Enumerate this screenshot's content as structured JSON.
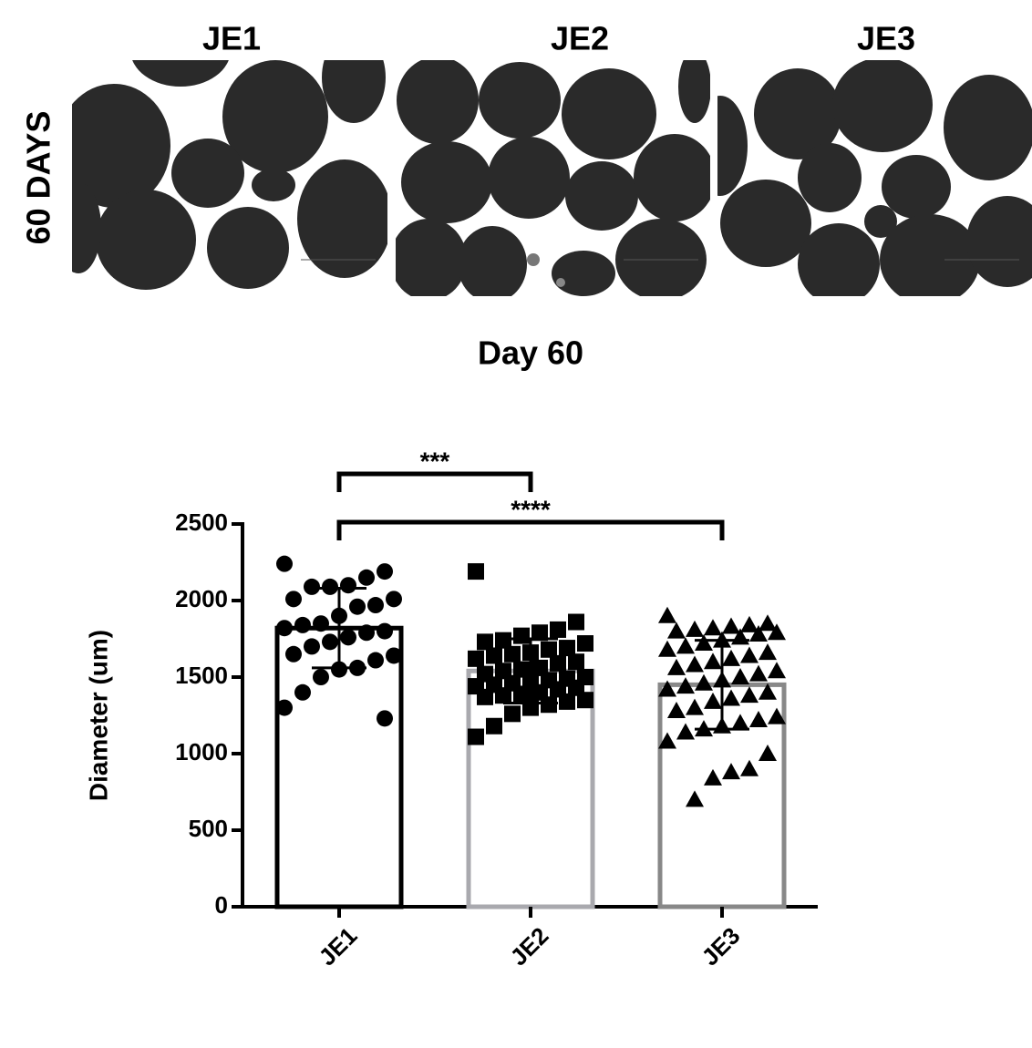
{
  "panels": {
    "row_label": "60 DAYS",
    "titles": [
      "JE1",
      "JE2",
      "JE3"
    ]
  },
  "chart_data": {
    "type": "bar",
    "title": "Day 60",
    "y_label": "Diameter (um)",
    "categories": [
      "JE1",
      "JE2",
      "JE3"
    ],
    "values": [
      1820,
      1540,
      1450
    ],
    "errors": [
      260,
      210,
      290
    ],
    "colors": [
      "#000000",
      "#a9a9ae",
      "#888888"
    ],
    "markers": [
      "circle",
      "square",
      "triangle"
    ],
    "points": [
      [
        2240,
        2190,
        2150,
        2100,
        2090,
        2090,
        2010,
        2010,
        1970,
        1960,
        1900,
        1850,
        1840,
        1820,
        1800,
        1790,
        1760,
        1730,
        1700,
        1650,
        1640,
        1610,
        1560,
        1550,
        1500,
        1400,
        1300,
        1230
      ],
      [
        2190,
        1860,
        1810,
        1790,
        1770,
        1740,
        1730,
        1720,
        1690,
        1680,
        1660,
        1650,
        1640,
        1620,
        1600,
        1590,
        1560,
        1550,
        1540,
        1520,
        1500,
        1490,
        1480,
        1470,
        1460,
        1450,
        1440,
        1430,
        1420,
        1400,
        1390,
        1380,
        1370,
        1350,
        1340,
        1320,
        1300,
        1260,
        1180,
        1110
      ],
      [
        1900,
        1850,
        1840,
        1830,
        1820,
        1810,
        1800,
        1790,
        1780,
        1760,
        1740,
        1720,
        1700,
        1680,
        1660,
        1640,
        1620,
        1600,
        1580,
        1560,
        1540,
        1520,
        1500,
        1480,
        1460,
        1440,
        1420,
        1400,
        1380,
        1360,
        1340,
        1300,
        1280,
        1240,
        1220,
        1200,
        1180,
        1160,
        1140,
        1080,
        1000,
        900,
        880,
        840,
        700
      ]
    ],
    "annotations": [
      {
        "label": "***",
        "from": "JE1",
        "to": "JE2"
      },
      {
        "label": "****",
        "from": "JE1",
        "to": "JE3"
      }
    ],
    "ylim": [
      0,
      2500
    ],
    "yticks": [
      0,
      500,
      1000,
      1500,
      2000,
      2500
    ]
  }
}
